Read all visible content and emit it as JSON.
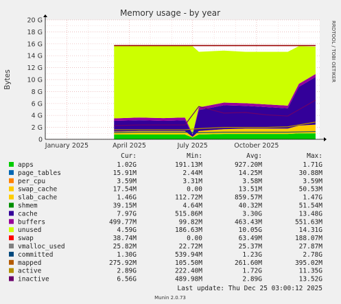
{
  "title": "Memory usage - by year",
  "watermark": "RRDTOOL / TOBI OETIKER",
  "footer": "Munin 2.0.73",
  "last_update": "Last update: Thu Dec 25 03:00:12 2025",
  "legend_headers": {
    "cur": "Cur:",
    "min": "Min:",
    "avg": "Avg:",
    "max": "Max:"
  },
  "legend": [
    {
      "name": "apps",
      "color": "#00cc00",
      "cur": "1.02G",
      "min": "191.13M",
      "avg": "927.20M",
      "max": "1.71G"
    },
    {
      "name": "page_tables",
      "color": "#0066b3",
      "cur": "15.91M",
      "min": "2.44M",
      "avg": "14.25M",
      "max": "30.88M"
    },
    {
      "name": "per_cpu",
      "color": "#ff8000",
      "cur": "3.59M",
      "min": "3.31M",
      "avg": "3.58M",
      "max": "3.59M"
    },
    {
      "name": "swap_cache",
      "color": "#ffcc00",
      "cur": "17.54M",
      "min": "0.00",
      "avg": "13.51M",
      "max": "50.53M"
    },
    {
      "name": "slab_cache",
      "color": "#ffcc00",
      "cur": "1.46G",
      "min": "112.72M",
      "avg": "859.57M",
      "max": "1.47G"
    },
    {
      "name": "shmem",
      "color": "#008f00",
      "cur": "39.15M",
      "min": "4.64M",
      "avg": "40.32M",
      "max": "51.54M"
    },
    {
      "name": "cache",
      "color": "#330099",
      "cur": "7.97G",
      "min": "515.86M",
      "avg": "3.30G",
      "max": "13.48G"
    },
    {
      "name": "buffers",
      "color": "#990099",
      "cur": "499.77M",
      "min": "99.82M",
      "avg": "463.43M",
      "max": "551.63M"
    },
    {
      "name": "unused",
      "color": "#ccff00",
      "cur": "4.59G",
      "min": "186.63M",
      "avg": "10.05G",
      "max": "14.31G"
    },
    {
      "name": "swap",
      "color": "#ff0000",
      "cur": "38.74M",
      "min": "0.00",
      "avg": "63.49M",
      "max": "188.07M"
    },
    {
      "name": "vmalloc_used",
      "color": "#808080",
      "cur": "25.82M",
      "min": "22.72M",
      "avg": "25.37M",
      "max": "27.87M"
    },
    {
      "name": "committed",
      "color": "#00487d",
      "cur": "1.30G",
      "min": "539.94M",
      "avg": "1.23G",
      "max": "2.78G"
    },
    {
      "name": "mapped",
      "color": "#b35a00",
      "cur": "275.92M",
      "min": "105.50M",
      "avg": "261.60M",
      "max": "395.02M"
    },
    {
      "name": "active",
      "color": "#b38f00",
      "cur": "2.89G",
      "min": "222.40M",
      "avg": "1.72G",
      "max": "11.35G"
    },
    {
      "name": "inactive",
      "color": "#6b006b",
      "cur": "6.56G",
      "min": "489.98M",
      "avg": "2.89G",
      "max": "13.52G"
    }
  ],
  "chart_data": {
    "type": "area",
    "title": "Memory usage - by year",
    "ylabel": "Bytes",
    "ylim": [
      0,
      20
    ],
    "y_unit": "G",
    "y_ticks": [
      0,
      2,
      4,
      6,
      8,
      10,
      12,
      14,
      16,
      18,
      20
    ],
    "y_tick_labels": [
      "0",
      "2 G",
      "4 G",
      "6 G",
      "8 G",
      "10 G",
      "12 G",
      "14 G",
      "16 G",
      "18 G",
      "20 G"
    ],
    "x_range": [
      "2024-12-01",
      "2025-12-31"
    ],
    "x_ticks": [
      {
        "date": "2025-01-01",
        "label": "January 2025"
      },
      {
        "date": "2025-04-01",
        "label": "April 2025"
      },
      {
        "date": "2025-07-01",
        "label": "July 2025"
      },
      {
        "date": "2025-10-01",
        "label": "October 2025"
      }
    ],
    "series": [
      {
        "name": "apps",
        "color": "#00cc00",
        "x": [
          "2025-03-10",
          "2025-04-15",
          "2025-05-20",
          "2025-06-20",
          "2025-07-01",
          "2025-07-10",
          "2025-08-15",
          "2025-09-15",
          "2025-10-15",
          "2025-11-15",
          "2025-12-01",
          "2025-12-25"
        ],
        "values": [
          0.8,
          0.8,
          0.8,
          0.8,
          0.3,
          0.8,
          0.9,
          0.9,
          0.9,
          0.9,
          1.0,
          1.0
        ]
      },
      {
        "name": "slab_cache",
        "color": "#ffcc00",
        "x": [
          "2025-03-10",
          "2025-04-15",
          "2025-05-20",
          "2025-06-20",
          "2025-07-01",
          "2025-07-10",
          "2025-08-15",
          "2025-09-15",
          "2025-10-15",
          "2025-11-15",
          "2025-12-01",
          "2025-12-25"
        ],
        "values": [
          0.5,
          0.6,
          0.6,
          0.6,
          0.1,
          0.6,
          0.8,
          0.9,
          0.9,
          0.9,
          1.3,
          1.46
        ]
      },
      {
        "name": "cache",
        "color": "#330099",
        "x": [
          "2025-03-10",
          "2025-04-15",
          "2025-05-20",
          "2025-06-20",
          "2025-07-01",
          "2025-07-10",
          "2025-08-15",
          "2025-09-15",
          "2025-10-15",
          "2025-11-15",
          "2025-12-01",
          "2025-12-25"
        ],
        "values": [
          1.8,
          1.8,
          1.7,
          1.8,
          0.4,
          3.5,
          4.0,
          3.8,
          3.6,
          3.4,
          6.5,
          7.97
        ]
      },
      {
        "name": "buffers",
        "color": "#990099",
        "x": [
          "2025-03-10",
          "2025-04-15",
          "2025-05-20",
          "2025-06-20",
          "2025-07-01",
          "2025-07-10",
          "2025-08-15",
          "2025-09-15",
          "2025-10-15",
          "2025-11-15",
          "2025-12-01",
          "2025-12-25"
        ],
        "values": [
          0.4,
          0.45,
          0.45,
          0.45,
          0.1,
          0.45,
          0.45,
          0.45,
          0.45,
          0.45,
          0.5,
          0.5
        ]
      },
      {
        "name": "unused",
        "color": "#ccff00",
        "x": [
          "2025-03-10",
          "2025-04-15",
          "2025-05-20",
          "2025-06-20",
          "2025-07-01",
          "2025-07-10",
          "2025-08-15",
          "2025-09-15",
          "2025-10-15",
          "2025-11-15",
          "2025-12-01",
          "2025-12-25"
        ],
        "values": [
          12.2,
          12.0,
          12.1,
          12.0,
          14.7,
          9.3,
          8.7,
          8.6,
          8.8,
          9.0,
          6.3,
          4.59
        ]
      }
    ],
    "lines": [
      {
        "name": "committed",
        "color": "#00487d",
        "x": [
          "2025-03-10",
          "2025-04-15",
          "2025-05-20",
          "2025-06-20",
          "2025-07-10",
          "2025-08-15",
          "2025-09-15",
          "2025-10-15",
          "2025-11-15",
          "2025-12-25"
        ],
        "values": [
          1.1,
          1.2,
          1.2,
          1.2,
          1.1,
          1.2,
          1.2,
          1.2,
          1.2,
          1.3
        ]
      },
      {
        "name": "active",
        "color": "#b38f00",
        "x": [
          "2025-03-10",
          "2025-04-15",
          "2025-05-20",
          "2025-06-20",
          "2025-07-10",
          "2025-08-15",
          "2025-09-15",
          "2025-10-15",
          "2025-11-15",
          "2025-12-25"
        ],
        "values": [
          1.6,
          1.6,
          1.6,
          1.6,
          1.8,
          2.0,
          2.0,
          2.0,
          2.1,
          2.89
        ]
      },
      {
        "name": "inactive",
        "color": "#6b006b",
        "x": [
          "2025-03-10",
          "2025-04-15",
          "2025-05-20",
          "2025-06-20",
          "2025-07-10",
          "2025-08-15",
          "2025-09-15",
          "2025-10-15",
          "2025-11-15",
          "2025-12-25"
        ],
        "values": [
          2.3,
          2.4,
          2.4,
          2.4,
          5.5,
          4.4,
          4.5,
          4.1,
          3.9,
          6.56
        ]
      }
    ],
    "ceiling": {
      "name": "total",
      "color": "#990000",
      "x_start": "2025-03-10",
      "x_end": "2025-12-25",
      "value": 15.7
    }
  }
}
